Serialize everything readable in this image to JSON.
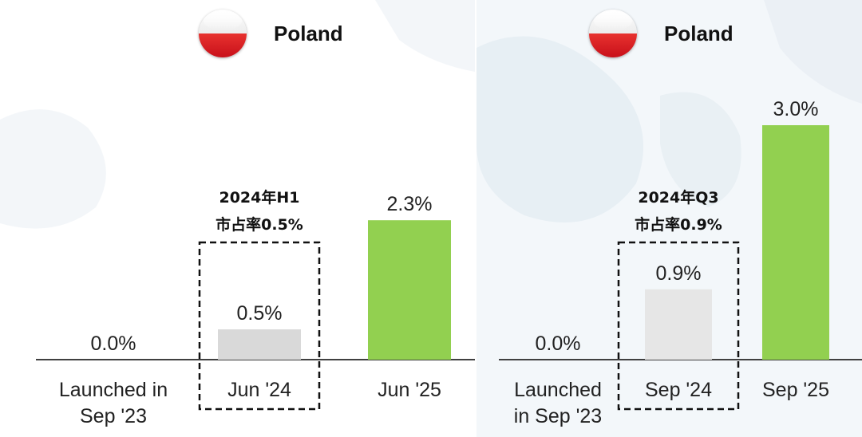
{
  "chart_data": [
    {
      "type": "bar",
      "title": "Poland",
      "categories": [
        "Launched in\nSep '23",
        "Jun '24",
        "Jun '25"
      ],
      "values": [
        0.0,
        0.5,
        2.3
      ],
      "value_labels": [
        "0.0%",
        "0.5%",
        "2.3%"
      ],
      "bar_colors": [
        "#d9d9d9",
        "#d9d9d9",
        "#92d050"
      ],
      "highlight": {
        "category": "Jun '24",
        "line1": "2024年H1",
        "line2": "市占率0.5%"
      },
      "xlabel": "",
      "ylabel": "",
      "ylim": [
        0,
        3.2
      ],
      "grid": false,
      "legend": "none"
    },
    {
      "type": "bar",
      "title": "Poland",
      "categories": [
        "Launched\nin Sep '23",
        "Sep '24",
        "Sep '25"
      ],
      "values": [
        0.0,
        0.9,
        3.0
      ],
      "value_labels": [
        "0.0%",
        "0.9%",
        "3.0%"
      ],
      "bar_colors": [
        "#d9d9d9",
        "#e6e6e6",
        "#92d050"
      ],
      "highlight": {
        "category": "Sep '24",
        "line1": "2024年Q3",
        "line2": "市占率0.9%"
      },
      "xlabel": "",
      "ylabel": "",
      "ylim": [
        0,
        3.2
      ],
      "grid": false,
      "legend": "none"
    }
  ],
  "colors": {
    "accent_green": "#92d050",
    "neutral_bar": "#d9d9d9",
    "flag_red": "#dc143c"
  }
}
